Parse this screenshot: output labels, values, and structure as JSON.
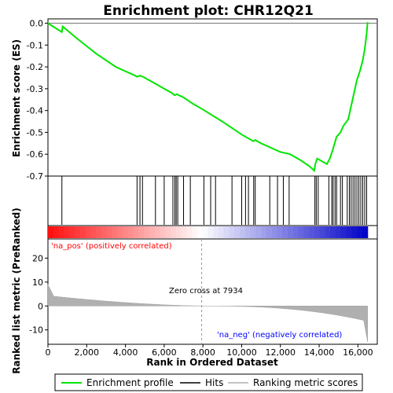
{
  "chart_data": {
    "type": "line",
    "title": "Enrichment plot: CHR12Q21",
    "top_panel": {
      "ylabel": "Enrichment score (ES)",
      "ylim": [
        -0.7,
        0.02
      ],
      "yticks": [
        0.0,
        -0.1,
        -0.2,
        -0.3,
        -0.4,
        -0.5,
        -0.6,
        -0.7
      ],
      "ytick_labels": [
        "0.0",
        "-0.1",
        "-0.2",
        "-0.3",
        "-0.4",
        "-0.5",
        "-0.6",
        "-0.7"
      ],
      "series": [
        {
          "name": "Enrichment profile",
          "color": "#00e600",
          "points": [
            [
              0,
              0.0
            ],
            [
              720,
              -0.04
            ],
            [
              760,
              -0.015
            ],
            [
              1500,
              -0.07
            ],
            [
              2500,
              -0.14
            ],
            [
              3500,
              -0.2
            ],
            [
              4500,
              -0.24
            ],
            [
              4600,
              -0.245
            ],
            [
              4750,
              -0.24
            ],
            [
              4900,
              -0.245
            ],
            [
              5500,
              -0.275
            ],
            [
              6000,
              -0.3
            ],
            [
              6400,
              -0.32
            ],
            [
              6550,
              -0.33
            ],
            [
              6650,
              -0.325
            ],
            [
              7000,
              -0.34
            ],
            [
              7500,
              -0.37
            ],
            [
              8000,
              -0.395
            ],
            [
              9000,
              -0.45
            ],
            [
              10000,
              -0.51
            ],
            [
              10600,
              -0.54
            ],
            [
              10700,
              -0.535
            ],
            [
              11000,
              -0.55
            ],
            [
              11500,
              -0.57
            ],
            [
              12000,
              -0.59
            ],
            [
              12500,
              -0.6
            ],
            [
              13000,
              -0.625
            ],
            [
              13500,
              -0.655
            ],
            [
              13750,
              -0.675
            ],
            [
              13800,
              -0.645
            ],
            [
              13900,
              -0.62
            ],
            [
              14400,
              -0.645
            ],
            [
              14550,
              -0.62
            ],
            [
              14700,
              -0.58
            ],
            [
              14900,
              -0.52
            ],
            [
              15100,
              -0.5
            ],
            [
              15250,
              -0.47
            ],
            [
              15500,
              -0.44
            ],
            [
              15650,
              -0.38
            ],
            [
              15800,
              -0.32
            ],
            [
              15950,
              -0.26
            ],
            [
              16100,
              -0.22
            ],
            [
              16250,
              -0.17
            ],
            [
              16350,
              -0.12
            ],
            [
              16450,
              -0.05
            ],
            [
              16500,
              0.005
            ]
          ]
        }
      ]
    },
    "hits_panel": {
      "name": "Hits",
      "hit_positions": [
        720,
        4600,
        4750,
        4880,
        5550,
        6000,
        6450,
        6550,
        6620,
        6700,
        7000,
        7350,
        8050,
        8400,
        8650,
        9500,
        10000,
        10200,
        10350,
        10620,
        10700,
        11450,
        11850,
        12150,
        12450,
        13780,
        13850,
        13950,
        14500,
        14650,
        14720,
        14820,
        14900,
        15100,
        15200,
        15450,
        15560,
        15650,
        15750,
        15850,
        15950,
        16050,
        16150,
        16250,
        16350,
        16450
      ]
    },
    "rank_panel": {
      "name": "Ranking metric scores",
      "ylabel": "Ranked list metric (PreRanked)",
      "ylim": [
        -16,
        28
      ],
      "yticks": [
        20,
        10,
        0,
        -10
      ],
      "ytick_labels": [
        "20",
        "10",
        "0",
        "-10"
      ],
      "zero_cross": 7934,
      "annotations": {
        "positive": "'na_pos' (positively correlated)",
        "negative": "'na_neg' (negatively correlated)",
        "zero_cross": "Zero cross at 7934"
      },
      "colors": {
        "positive": "#ff0000",
        "negative": "#0000ff",
        "fill": "#b0b0b0"
      }
    },
    "xaxis": {
      "xlabel": "Rank in Ordered Dataset",
      "xlim": [
        0,
        17000
      ],
      "xticks": [
        0,
        2000,
        4000,
        6000,
        8000,
        10000,
        12000,
        14000,
        16000
      ],
      "xtick_labels": [
        "0",
        "2,000",
        "4,000",
        "6,000",
        "8,000",
        "10,000",
        "12,000",
        "14,000",
        "16,000"
      ],
      "n_genes": 16500
    },
    "legend": {
      "placement": "bottom",
      "items": [
        {
          "label": "Enrichment profile",
          "color": "#00e600"
        },
        {
          "label": "Hits",
          "color": "#000000"
        },
        {
          "label": "Ranking metric scores",
          "color": "#b0b0b0"
        }
      ]
    }
  }
}
